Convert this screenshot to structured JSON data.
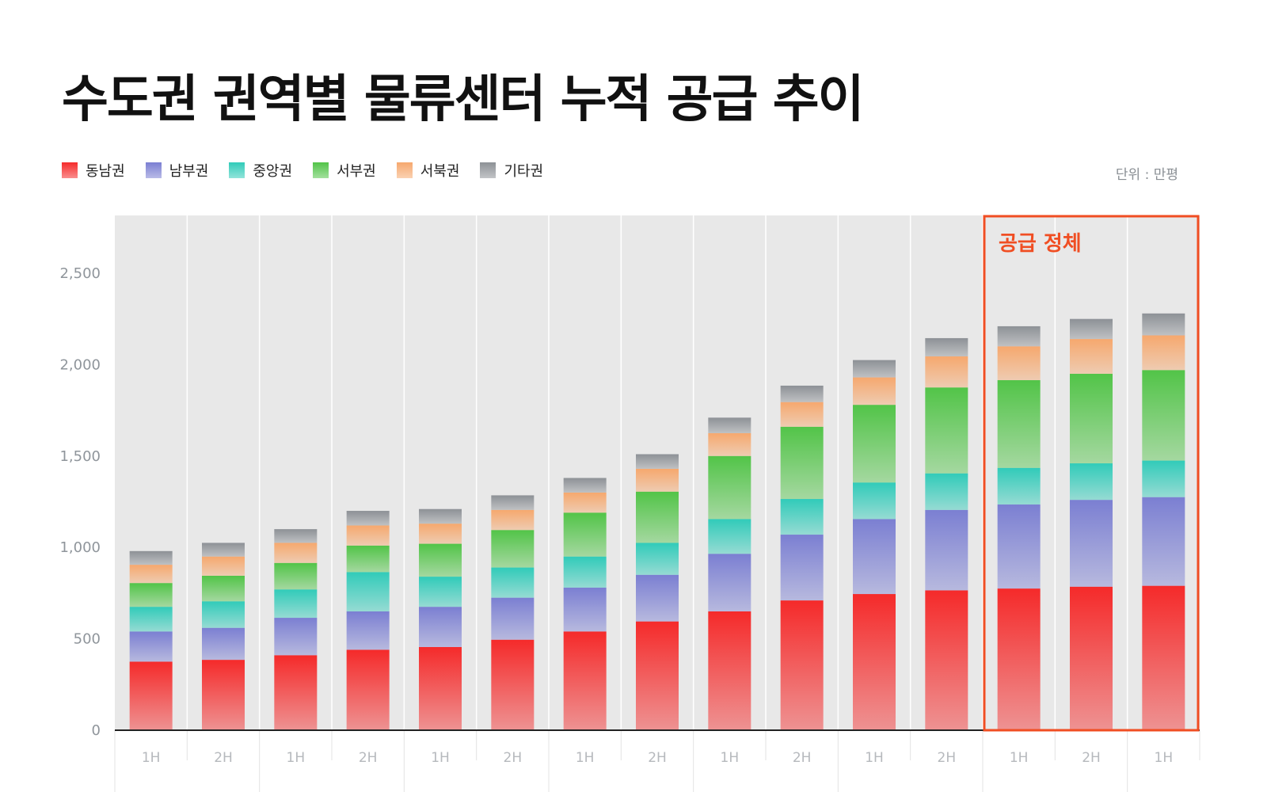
{
  "chart_data": {
    "type": "bar",
    "stacked": true,
    "title": "수도권 권역별  물류센터 누적 공급 추이",
    "unit_label": "단위 : 만평",
    "categories": [
      "1H",
      "2H",
      "1H",
      "2H",
      "1H",
      "2H",
      "1H",
      "2H",
      "1H",
      "2H",
      "1H",
      "2H",
      "1H",
      "2H",
      "1H"
    ],
    "series": [
      {
        "name": "동남권",
        "color": "#f52a2a",
        "values": [
          375,
          385,
          410,
          440,
          455,
          495,
          540,
          595,
          650,
          710,
          745,
          765,
          775,
          785,
          790
        ]
      },
      {
        "name": "남부권",
        "color": "#7b7fd2",
        "values": [
          165,
          175,
          205,
          210,
          220,
          230,
          240,
          255,
          315,
          360,
          410,
          440,
          460,
          475,
          485
        ]
      },
      {
        "name": "중앙권",
        "color": "#31cbb9",
        "values": [
          135,
          145,
          155,
          215,
          165,
          165,
          170,
          175,
          190,
          195,
          200,
          200,
          200,
          200,
          200
        ]
      },
      {
        "name": "서부권",
        "color": "#52c448",
        "values": [
          130,
          140,
          145,
          145,
          180,
          205,
          240,
          280,
          345,
          395,
          425,
          470,
          480,
          490,
          495
        ]
      },
      {
        "name": "서북권",
        "color": "#f6a86e",
        "values": [
          100,
          105,
          110,
          110,
          110,
          110,
          110,
          125,
          125,
          135,
          150,
          170,
          185,
          190,
          190
        ]
      },
      {
        "name": "기타권",
        "color": "#8d9196",
        "values": [
          75,
          75,
          75,
          80,
          80,
          80,
          80,
          80,
          85,
          90,
          95,
          100,
          110,
          110,
          120
        ]
      }
    ],
    "ylim": [
      0,
      2800
    ],
    "yticks": [
      0,
      500,
      1000,
      1500,
      2000,
      2500
    ],
    "ytick_labels": [
      "0",
      "500",
      "1,000",
      "1,500",
      "2,000",
      "2,500"
    ],
    "grid": false,
    "legend_position": "top-left",
    "annotation": {
      "text": "공급 정체",
      "from_index": 12,
      "to_index": 14,
      "color": "#f04e23"
    }
  }
}
